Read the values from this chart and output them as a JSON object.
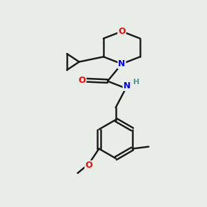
{
  "bg_color": "#e8ede8",
  "bond_color": "#1a1a1a",
  "N_color": "#0000ff",
  "O_color": "#ff0000",
  "H_color": "#4a9a9a",
  "lw": 1.8,
  "figsize": [
    3.0,
    3.0
  ],
  "dpi": 100,
  "xlim": [
    0,
    10
  ],
  "ylim": [
    0,
    10
  ]
}
